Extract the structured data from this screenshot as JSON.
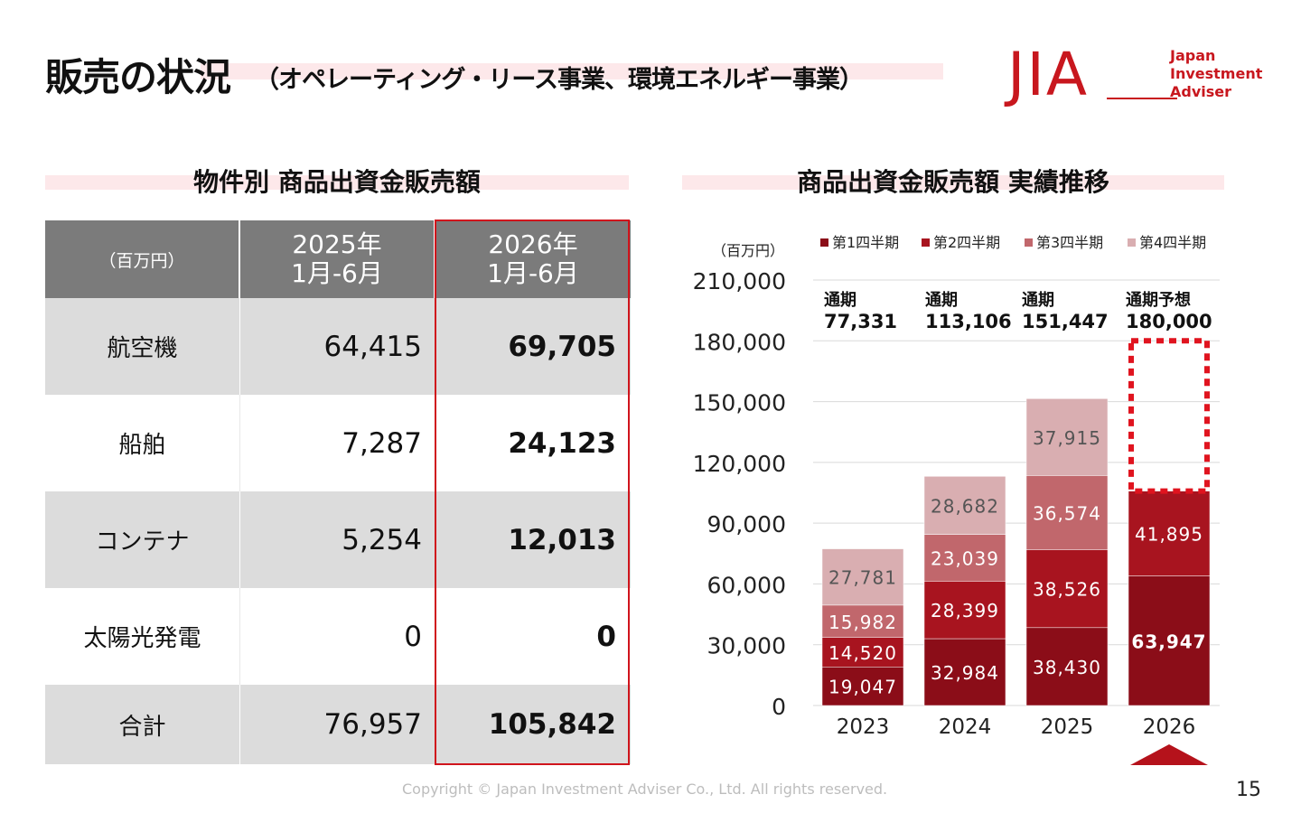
{
  "page": {
    "title": "販売の状況",
    "subtitle": "（オペレーティング・リース事業、環境エネルギー事業）",
    "logo_mark": "JIA",
    "logo_lines": [
      "Japan",
      "Investment",
      "Adviser"
    ],
    "copyright": "Copyright © Japan Investment Adviser Co., Ltd. All rights reserved.",
    "page_number": "15",
    "brand_color": "#c8171e"
  },
  "table": {
    "section_title": "物件別 商品出資金販売額",
    "unit": "（百万円）",
    "col1_line1": "2025年",
    "col1_line2": "1月-6月",
    "col2_line1": "2026年",
    "col2_line2": "1月-6月",
    "rows": [
      {
        "label": "航空機",
        "v2025": "64,415",
        "v2026": "69,705"
      },
      {
        "label": "船舶",
        "v2025": "7,287",
        "v2026": "24,123"
      },
      {
        "label": "コンテナ",
        "v2025": "5,254",
        "v2026": "12,013"
      },
      {
        "label": "太陽光発電",
        "v2025": "0",
        "v2026": "0"
      },
      {
        "label": "合計",
        "v2025": "76,957",
        "v2026": "105,842"
      }
    ]
  },
  "chart_data": {
    "type": "bar",
    "stacked": true,
    "title": "商品出資金販売額 実績推移",
    "ylabel": "（百万円）",
    "ylim": [
      0,
      210000
    ],
    "yticks": [
      "0",
      "30,000",
      "60,000",
      "90,000",
      "120,000",
      "150,000",
      "180,000",
      "210,000"
    ],
    "grid": true,
    "legend_position": "top-right",
    "categories": [
      "2023",
      "2024",
      "2025",
      "2026"
    ],
    "series": [
      {
        "name": "第1四半期",
        "color": "#8b0d18",
        "values": [
          19047,
          32984,
          38430,
          63947
        ],
        "labels": [
          "19,047",
          "32,984",
          "38,430",
          "63,947"
        ]
      },
      {
        "name": "第2四半期",
        "color": "#a8141f",
        "values": [
          14520,
          28399,
          38526,
          41895
        ],
        "labels": [
          "14,520",
          "28,399",
          "38,526",
          "41,895"
        ]
      },
      {
        "name": "第3四半期",
        "color": "#c1676c",
        "values": [
          15982,
          23039,
          36574,
          null
        ],
        "labels": [
          "15,982",
          "23,039",
          "36,574",
          ""
        ]
      },
      {
        "name": "第4四半期",
        "color": "#d9aeb1",
        "values": [
          27781,
          28682,
          37915,
          null
        ],
        "labels": [
          "27,781",
          "28,682",
          "37,915",
          ""
        ]
      }
    ],
    "annotations": [
      {
        "category": "2023",
        "line1": "通期",
        "line2": "77,331"
      },
      {
        "category": "2024",
        "line1": "通期",
        "line2": "113,106"
      },
      {
        "category": "2025",
        "line1": "通期",
        "line2": "151,447"
      },
      {
        "category": "2026",
        "line1": "通期予想",
        "line2": "180,000"
      }
    ],
    "forecast_total": 180000,
    "forecast_color": "#e0141f"
  }
}
